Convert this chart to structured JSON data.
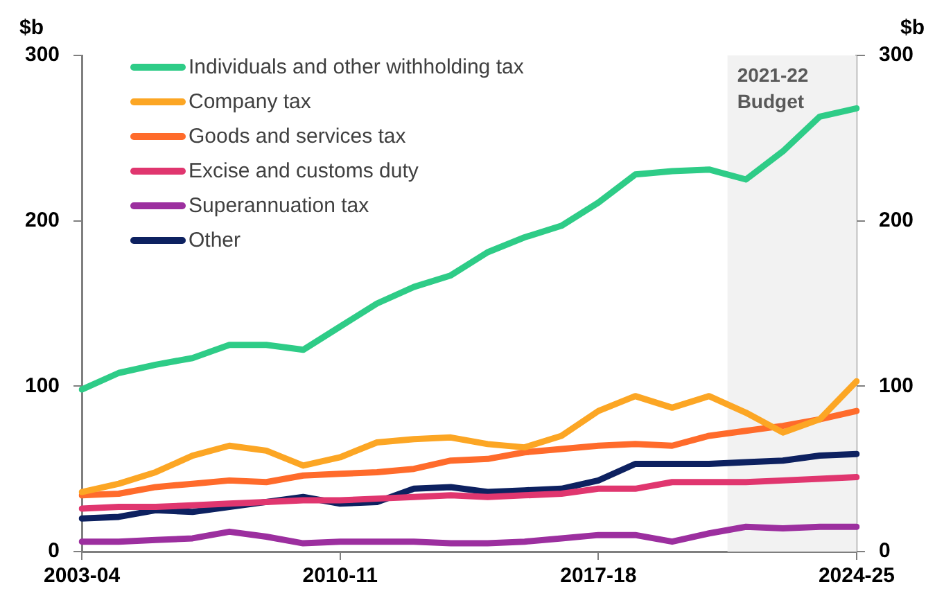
{
  "chart_data": {
    "type": "line",
    "ylabel": "$b",
    "y2label": "$b",
    "categories": [
      "2003-04",
      null,
      null,
      null,
      null,
      null,
      null,
      "2010-11",
      null,
      null,
      null,
      null,
      null,
      null,
      "2017-18",
      null,
      null,
      null,
      null,
      null,
      null,
      "2024-25"
    ],
    "series": [
      {
        "name": "Individuals and other withholding tax",
        "color": "#2ecc87",
        "values": [
          98,
          108,
          113,
          117,
          125,
          125,
          122,
          136,
          150,
          160,
          167,
          181,
          190,
          197,
          211,
          228,
          230,
          231,
          225,
          242,
          263,
          268
        ]
      },
      {
        "name": "Company tax",
        "color": "#fca624",
        "values": [
          36,
          41,
          48,
          58,
          64,
          61,
          52,
          57,
          66,
          68,
          69,
          65,
          63,
          70,
          85,
          94,
          87,
          94,
          84,
          72,
          80,
          103
        ]
      },
      {
        "name": "Goods and services tax",
        "color": "#ff6b2b",
        "values": [
          34,
          35,
          39,
          41,
          43,
          42,
          46,
          47,
          48,
          50,
          55,
          56,
          60,
          62,
          64,
          65,
          64,
          70,
          73,
          76,
          80,
          85
        ]
      },
      {
        "name": "Excise and customs duty",
        "color": "#e0366f",
        "values": [
          26,
          27,
          27,
          28,
          29,
          30,
          31,
          31,
          32,
          33,
          34,
          33,
          34,
          35,
          38,
          38,
          42,
          42,
          42,
          43,
          44,
          45
        ]
      },
      {
        "name": "Superannuation tax",
        "color": "#9c2f9f",
        "values": [
          6,
          6,
          7,
          8,
          12,
          9,
          5,
          6,
          6,
          6,
          5,
          5,
          6,
          8,
          10,
          10,
          6,
          11,
          15,
          14,
          15,
          15
        ]
      },
      {
        "name": "Other",
        "color": "#0d2160",
        "values": [
          20,
          21,
          25,
          24,
          27,
          30,
          33,
          29,
          30,
          38,
          39,
          36,
          37,
          38,
          43,
          53,
          53,
          53,
          54,
          55,
          58,
          59
        ]
      }
    ],
    "ylim": [
      0,
      300
    ],
    "yticks": [
      0,
      100,
      200,
      300
    ],
    "y2lim": [
      0,
      300
    ],
    "y2ticks": [
      0,
      100,
      200,
      300
    ],
    "bands": [
      {
        "axis": "x",
        "from": "2021-22",
        "to": "2024-25",
        "label": "2021-22 Budget",
        "color": "#f2f2f2"
      }
    ],
    "grid": false,
    "legend": "top left",
    "marker": "none",
    "line_style": "solid"
  }
}
